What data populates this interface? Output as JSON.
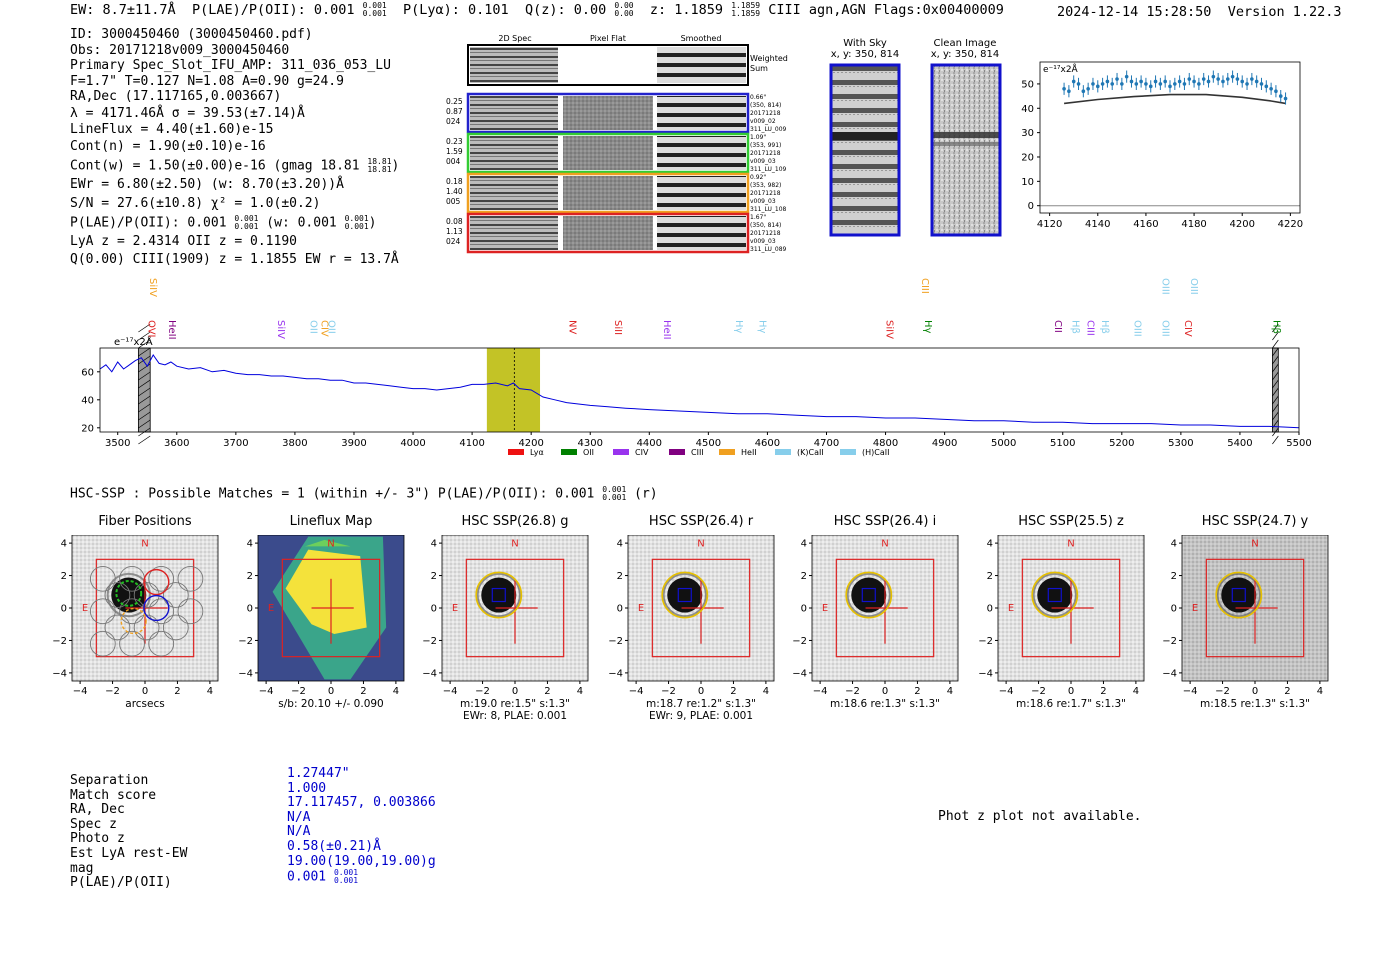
{
  "header": {
    "ew": "EW: 8.7±11.7Å",
    "plae": "P(LAE)/P(OII): 0.001",
    "plae_hi": "0.001",
    "plae_lo": "0.001",
    "plya": "P(Lyα): 0.101",
    "qz": "Q(z): 0.00",
    "qz_hi": "0.00",
    "qz_lo": "0.00",
    "z": "z: 1.1859",
    "z_hi": "1.1859",
    "z_lo": "1.1859",
    "tags": "CIII  agn,AGN  Flags:0x00400009",
    "datetime": "2024-12-14 15:28:50",
    "version": "Version 1.22.3"
  },
  "info": {
    "id": "ID: 3000450460 (3000450460.pdf)",
    "obs": "Obs: 20171218v009_3000450460",
    "primary": "Primary Spec_Slot_IFU_AMP: 311_036_053_LU",
    "fit": "F=1.7\"  T=0.127  N=1.08  A=0.90  g=24.9",
    "radec": "RA,Dec (17.117165,0.003667)",
    "lambda": "λ = 4171.46Å  σ = 39.53(±7.14)Å",
    "lineflux": "LineFlux = 4.40(±1.60)e-15",
    "cont_n": "Cont(n) = 1.90(±0.10)e-16",
    "cont_w": "Cont(w) = 1.50(±0.00)e-16 (gmag 18.81",
    "cont_w_hi": "18.81",
    "cont_w_lo": "18.81",
    "ewr": "EWr = 6.80(±2.50) (w: 8.70(±3.20))Å",
    "sn": "S/N = 27.6(±10.8)  χ² = 1.0(±0.2)",
    "plae": "P(LAE)/P(OII): 0.001",
    "plae_hi": "0.001",
    "plae_lo": "0.001",
    "plae_w": "(w: 0.001",
    "plae_w_hi": "0.001",
    "plae_w_lo": "0.001",
    "lya_z": "LyA z = 2.4314  OII z = 0.1190",
    "q_line": "Q(0.00) CIII(1909) z = 1.1855  EW r = 13.7Å"
  },
  "cutouts": {
    "col_labels": [
      "2D Spec",
      "Pixel Flat",
      "Smoothed"
    ],
    "weighted_sum": "Weighted Sum",
    "rows": [
      {
        "left": [
          "0.25",
          "0.87",
          "024"
        ],
        "right": [
          "0.66\"",
          "(350, 814)",
          "20171218",
          "v009_02",
          "311_LU_009"
        ],
        "color": "#2222cc"
      },
      {
        "left": [
          "0.23",
          "1.59",
          "004"
        ],
        "right": [
          "1.09\"",
          "(353, 991)",
          "20171218",
          "v009_03",
          "311_LU_109"
        ],
        "color": "#33cc33"
      },
      {
        "left": [
          "0.18",
          "1.40",
          "005"
        ],
        "right": [
          "0.92\"",
          "(353, 982)",
          "20171218",
          "v009_03",
          "311_LU_108"
        ],
        "color": "#f0a020"
      },
      {
        "left": [
          "0.08",
          "1.13",
          "024"
        ],
        "right": [
          "1.67\"",
          "(350, 814)",
          "20171218",
          "v009_03",
          "311_LU_089"
        ],
        "color": "#dd2222"
      }
    ]
  },
  "sky": {
    "with_sky_title": "With Sky",
    "with_sky_xy": "x, y: 350, 814",
    "clean_title": "Clean Image",
    "clean_xy": "x, y: 350, 814"
  },
  "zoom_chart_data": {
    "type": "line",
    "unit_label": "e⁻¹⁷x2Å",
    "xlim": [
      4116,
      4224
    ],
    "ylim": [
      -3,
      59
    ],
    "xticks": [
      4120,
      4140,
      4160,
      4180,
      4200,
      4220
    ],
    "yticks": [
      0,
      10,
      20,
      30,
      40,
      50
    ],
    "points_x": [
      4126,
      4128,
      4130,
      4132,
      4134,
      4136,
      4138,
      4140,
      4142,
      4144,
      4146,
      4148,
      4150,
      4152,
      4154,
      4156,
      4158,
      4160,
      4162,
      4164,
      4166,
      4168,
      4170,
      4172,
      4174,
      4176,
      4178,
      4180,
      4182,
      4184,
      4186,
      4188,
      4190,
      4192,
      4194,
      4196,
      4198,
      4200,
      4202,
      4204,
      4206,
      4208,
      4210,
      4212,
      4214,
      4216,
      4218
    ],
    "points_y": [
      48,
      47,
      51,
      50,
      47,
      48,
      50,
      49,
      50,
      51,
      50,
      52,
      50,
      53,
      51,
      50,
      51,
      50,
      49,
      51,
      50,
      51,
      49,
      50,
      51,
      50,
      52,
      51,
      50,
      52,
      51,
      53,
      52,
      51,
      52,
      53,
      52,
      51,
      50,
      52,
      51,
      50,
      49,
      48,
      47,
      45,
      44
    ],
    "model_x": [
      4126,
      4140,
      4155,
      4170,
      4185,
      4200,
      4212,
      4218
    ],
    "model_y": [
      42,
      43.6,
      44.8,
      45.6,
      45.6,
      44.5,
      43,
      42
    ]
  },
  "chart_data": {
    "type": "line",
    "unit_label": "e⁻¹⁷x2Å",
    "title": "",
    "xlim": [
      3470,
      5500
    ],
    "ylim": [
      17,
      77
    ],
    "xticks": [
      3500,
      3600,
      3700,
      3800,
      3900,
      4000,
      4100,
      4200,
      4300,
      4400,
      4500,
      4600,
      4700,
      4800,
      4900,
      5000,
      5100,
      5200,
      5300,
      5400,
      5500
    ],
    "yticks": [
      20,
      40,
      60
    ],
    "highlight": {
      "x0": 4125,
      "x1": 4215,
      "center": 4171.5,
      "color": "#b8b800"
    },
    "hatched": [
      {
        "x0": 3535,
        "x1": 3555
      },
      {
        "x0": 5455,
        "x1": 5465
      }
    ],
    "series_x": [
      3470,
      3480,
      3490,
      3500,
      3510,
      3520,
      3530,
      3540,
      3550,
      3560,
      3570,
      3580,
      3590,
      3600,
      3620,
      3640,
      3660,
      3680,
      3700,
      3720,
      3740,
      3760,
      3780,
      3800,
      3820,
      3840,
      3860,
      3880,
      3900,
      3920,
      3940,
      3960,
      3980,
      4000,
      4020,
      4040,
      4060,
      4080,
      4100,
      4120,
      4140,
      4160,
      4170,
      4180,
      4200,
      4220,
      4240,
      4260,
      4280,
      4300,
      4330,
      4360,
      4400,
      4450,
      4500,
      4550,
      4600,
      4650,
      4700,
      4750,
      4800,
      4850,
      4900,
      4950,
      5000,
      5050,
      5100,
      5150,
      5200,
      5250,
      5300,
      5350,
      5400,
      5450,
      5500
    ],
    "series_y": [
      62,
      65,
      60,
      67,
      62,
      65,
      68,
      70,
      64,
      72,
      66,
      65,
      67,
      64,
      62,
      63,
      60,
      61,
      59,
      58,
      58,
      57,
      57,
      56,
      55,
      55,
      54,
      54,
      52,
      52,
      51,
      50,
      49,
      48,
      48,
      47,
      48,
      49,
      51,
      51,
      52,
      50,
      52,
      48,
      47,
      42,
      40,
      38,
      37,
      36,
      35,
      34,
      33,
      32,
      31,
      30,
      30,
      29,
      28,
      28,
      27,
      27,
      26,
      25,
      25,
      24,
      24,
      23,
      23,
      23,
      22,
      22,
      21,
      21,
      20
    ],
    "lines": [
      {
        "label": "SiIV",
        "x": 3548,
        "color": "#f0a020",
        "row": "top"
      },
      {
        "label": "OVI",
        "x": 3545,
        "color": "#dd2222",
        "row": "low"
      },
      {
        "label": "HeII",
        "x": 3580,
        "color": "#800080",
        "row": "low"
      },
      {
        "label": "SiIV",
        "x": 3765,
        "color": "#9933ee",
        "row": "low"
      },
      {
        "label": "OII",
        "x": 3820,
        "color": "#87ceeb",
        "row": "low"
      },
      {
        "label": "CIV",
        "x": 3838,
        "color": "#f0a020",
        "row": "low"
      },
      {
        "label": "OII",
        "x": 3850,
        "color": "#87ceeb",
        "row": "low"
      },
      {
        "label": "NV",
        "x": 4258,
        "color": "#dd2222",
        "row": "low"
      },
      {
        "label": "SiII",
        "x": 4335,
        "color": "#dd2222",
        "row": "low"
      },
      {
        "label": "HeII",
        "x": 4418,
        "color": "#9933ee",
        "row": "low"
      },
      {
        "label": "Hγ",
        "x": 4540,
        "color": "#87ceeb",
        "row": "low"
      },
      {
        "label": "Hγ",
        "x": 4580,
        "color": "#87ceeb",
        "row": "low"
      },
      {
        "label": "SiIV",
        "x": 4795,
        "color": "#dd2222",
        "row": "low"
      },
      {
        "label": "CIII",
        "x": 4855,
        "color": "#f0a020",
        "row": "top"
      },
      {
        "label": "Hγ",
        "x": 4860,
        "color": "#008000",
        "row": "low"
      },
      {
        "label": "CII",
        "x": 5080,
        "color": "#800080",
        "row": "low"
      },
      {
        "label": "Hβ",
        "x": 5110,
        "color": "#87ceeb",
        "row": "low"
      },
      {
        "label": "CIII",
        "x": 5135,
        "color": "#9933ee",
        "row": "low"
      },
      {
        "label": "Hβ",
        "x": 5160,
        "color": "#87ceeb",
        "row": "low"
      },
      {
        "label": "OIII",
        "x": 5215,
        "color": "#87ceeb",
        "row": "low"
      },
      {
        "label": "OIII",
        "x": 5262,
        "color": "#87ceeb",
        "row": "low"
      },
      {
        "label": "OIII",
        "x": 5262,
        "color": "#87ceeb",
        "row": "top"
      },
      {
        "label": "OIII",
        "x": 5310,
        "color": "#87ceeb",
        "row": "top"
      },
      {
        "label": "CIV",
        "x": 5300,
        "color": "#dd2222",
        "row": "low"
      },
      {
        "label": "Hβ",
        "x": 5450,
        "color": "#008000",
        "row": "low"
      }
    ],
    "legend": [
      {
        "label": "Lyα",
        "color": "#ee1111"
      },
      {
        "label": "OII",
        "color": "#008000"
      },
      {
        "label": "CIV",
        "color": "#9933ee"
      },
      {
        "label": "CIII",
        "color": "#800080"
      },
      {
        "label": "HeII",
        "color": "#f0a020"
      },
      {
        "label": "(K)CaII",
        "color": "#87ceeb"
      },
      {
        "label": "(H)CaII",
        "color": "#87ceeb"
      }
    ]
  },
  "hsc": {
    "summary": "HSC-SSP : Possible Matches = 1 (within +/- 3\")  P(LAE)/P(OII): 0.001",
    "summary_hi": "0.001",
    "summary_lo": "0.001",
    "summary_tail": "(r)",
    "axis_ticks": [
      "−4",
      "−2",
      "0",
      "2",
      "4"
    ],
    "n_label": "N",
    "e_label": "E",
    "panels": [
      {
        "title": "Fiber Positions",
        "cap1": "arcsecs",
        "cap2": "",
        "kind": "fiber"
      },
      {
        "title": "Lineflux Map",
        "cap1": "s/b: 20.10 +/- 0.090",
        "cap2": "",
        "kind": "flux"
      },
      {
        "title": "HSC SSP(26.8) g",
        "cap1": "m:19.0  re:1.5\"  s:1.3\"",
        "cap2": "EWr: 8, PLAE: 0.001",
        "kind": "img"
      },
      {
        "title": "HSC SSP(26.4) r",
        "cap1": "m:18.7  re:1.2\"  s:1.3\"",
        "cap2": "EWr: 9, PLAE: 0.001",
        "kind": "img"
      },
      {
        "title": "HSC SSP(26.4) i",
        "cap1": "m:18.6  re:1.3\"  s:1.3\"",
        "cap2": "",
        "kind": "img"
      },
      {
        "title": "HSC SSP(25.5) z",
        "cap1": "m:18.6  re:1.7\"  s:1.3\"",
        "cap2": "",
        "kind": "img"
      },
      {
        "title": "HSC SSP(24.7) y",
        "cap1": "m:18.5  re:1.3\"  s:1.3\"",
        "cap2": "",
        "kind": "img"
      }
    ]
  },
  "summary": {
    "labels": [
      "Separation",
      "Match score",
      "RA, Dec",
      "Spec z",
      "Photo z",
      "Est LyA rest-EW",
      "mag",
      "P(LAE)/P(OII)"
    ],
    "values": [
      "1.27447\"",
      "1.000",
      "17.117457, 0.003866",
      "N/A",
      "N/A",
      "0.58(±0.21)Å",
      "19.00(19.00,19.00)g",
      "0.001"
    ],
    "plae_hi": "0.001",
    "plae_lo": "0.001",
    "photz_note": "Phot z plot not available."
  }
}
